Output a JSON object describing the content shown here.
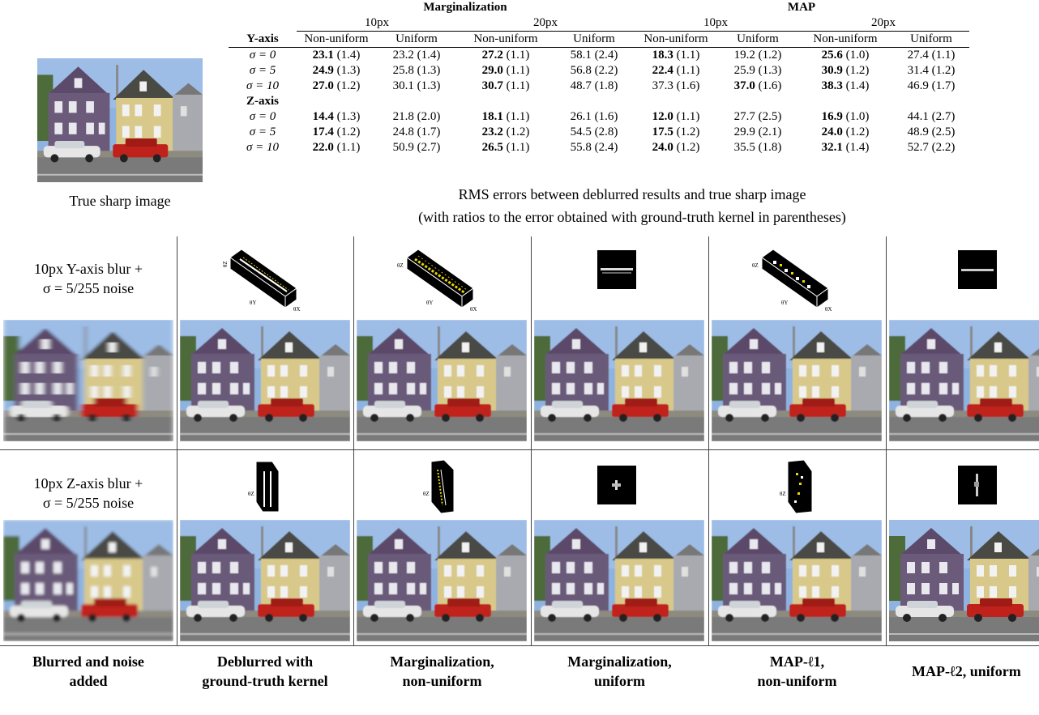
{
  "thumbnail": {
    "caption": "True sharp image"
  },
  "table": {
    "group_headers": [
      "Marginalization",
      "MAP"
    ],
    "sub_headers": [
      "10px",
      "20px",
      "10px",
      "20px"
    ],
    "col_headers": [
      "Non-uniform",
      "Uniform",
      "Non-uniform",
      "Uniform",
      "Non-uniform",
      "Uniform",
      "Non-uniform",
      "Uniform"
    ],
    "section_labels": [
      "Y-axis",
      "Z-axis"
    ],
    "y_rows": [
      {
        "label": "σ = 0",
        "cells": [
          [
            "23.1",
            "(1.4)",
            true
          ],
          [
            "23.2",
            "(1.4)",
            false
          ],
          [
            "27.2",
            "(1.1)",
            true
          ],
          [
            "58.1",
            "(2.4)",
            false
          ],
          [
            "18.3",
            "(1.1)",
            true
          ],
          [
            "19.2",
            "(1.2)",
            false
          ],
          [
            "25.6",
            "(1.0)",
            true
          ],
          [
            "27.4",
            "(1.1)",
            false
          ]
        ]
      },
      {
        "label": "σ = 5",
        "cells": [
          [
            "24.9",
            "(1.3)",
            true
          ],
          [
            "25.8",
            "(1.3)",
            false
          ],
          [
            "29.0",
            "(1.1)",
            true
          ],
          [
            "56.8",
            "(2.2)",
            false
          ],
          [
            "22.4",
            "(1.1)",
            true
          ],
          [
            "25.9",
            "(1.3)",
            false
          ],
          [
            "30.9",
            "(1.2)",
            true
          ],
          [
            "31.4",
            "(1.2)",
            false
          ]
        ]
      },
      {
        "label": "σ = 10",
        "cells": [
          [
            "27.0",
            "(1.2)",
            true
          ],
          [
            "30.1",
            "(1.3)",
            false
          ],
          [
            "30.7",
            "(1.1)",
            true
          ],
          [
            "48.7",
            "(1.8)",
            false
          ],
          [
            "37.3",
            "(1.6)",
            false
          ],
          [
            "37.0",
            "(1.6)",
            true
          ],
          [
            "38.3",
            "(1.4)",
            true
          ],
          [
            "46.9",
            "(1.7)",
            false
          ]
        ]
      }
    ],
    "z_rows": [
      {
        "label": "σ = 0",
        "cells": [
          [
            "14.4",
            "(1.3)",
            true
          ],
          [
            "21.8",
            "(2.0)",
            false
          ],
          [
            "18.1",
            "(1.1)",
            true
          ],
          [
            "26.1",
            "(1.6)",
            false
          ],
          [
            "12.0",
            "(1.1)",
            true
          ],
          [
            "27.7",
            "(2.5)",
            false
          ],
          [
            "16.9",
            "(1.0)",
            true
          ],
          [
            "44.1",
            "(2.7)",
            false
          ]
        ]
      },
      {
        "label": "σ = 5",
        "cells": [
          [
            "17.4",
            "(1.2)",
            true
          ],
          [
            "24.8",
            "(1.7)",
            false
          ],
          [
            "23.2",
            "(1.2)",
            true
          ],
          [
            "54.5",
            "(2.8)",
            false
          ],
          [
            "17.5",
            "(1.2)",
            true
          ],
          [
            "29.9",
            "(2.1)",
            false
          ],
          [
            "24.0",
            "(1.2)",
            true
          ],
          [
            "48.9",
            "(2.5)",
            false
          ]
        ]
      },
      {
        "label": "σ = 10",
        "cells": [
          [
            "22.0",
            "(1.1)",
            true
          ],
          [
            "50.9",
            "(2.7)",
            false
          ],
          [
            "26.5",
            "(1.1)",
            true
          ],
          [
            "55.8",
            "(2.4)",
            false
          ],
          [
            "24.0",
            "(1.2)",
            true
          ],
          [
            "35.5",
            "(1.8)",
            false
          ],
          [
            "32.1",
            "(1.4)",
            true
          ],
          [
            "52.7",
            "(2.2)",
            false
          ]
        ]
      }
    ],
    "caption_line1": "RMS errors between deblurred results and true sharp image",
    "caption_line2": "(with ratios to the error obtained with ground-truth kernel in parentheses)"
  },
  "rows": {
    "y_blur_label_line1": "10px Y-axis blur +",
    "y_blur_label_line2": "σ = 5/255 noise",
    "z_blur_label_line1": "10px Z-axis blur +",
    "z_blur_label_line2": "σ = 5/255 noise"
  },
  "kernel_axis_labels": {
    "theta_x": "θX",
    "theta_y": "θY",
    "theta_z": "θZ"
  },
  "column_captions": [
    [
      "Blurred and noise",
      "added"
    ],
    [
      "Deblurred with",
      "ground-truth kernel"
    ],
    [
      "Marginalization,",
      "non-uniform"
    ],
    [
      "Marginalization,",
      "uniform"
    ],
    [
      "MAP-ℓ1,",
      "non-uniform"
    ],
    [
      "MAP-ℓ2, uniform",
      ""
    ]
  ],
  "colors": {
    "house_purple": "#6b5a7a",
    "house_yellow": "#d8c98a",
    "sky": "#8fb3e0",
    "car_red": "#c0211b",
    "kernel_yellow": "#e8d800"
  }
}
